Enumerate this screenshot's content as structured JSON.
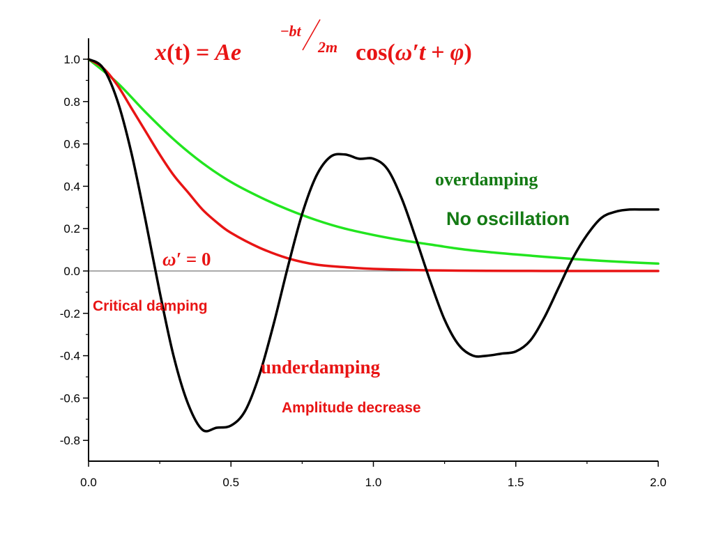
{
  "chart_data": {
    "type": "line",
    "xlim": [
      0,
      2
    ],
    "ylim": [
      -0.9,
      1.1
    ],
    "xticks": [
      "0.0",
      "0.5",
      "1.0",
      "1.5",
      "2.0"
    ],
    "yticks": [
      "1.0",
      "0.8",
      "0.6",
      "0.4",
      "0.2",
      "0.0",
      "-0.2",
      "-0.4",
      "-0.6",
      "-0.8"
    ],
    "xtick_values": [
      0,
      0.5,
      1.0,
      1.5,
      2.0
    ],
    "ytick_values": [
      1.0,
      0.8,
      0.6,
      0.4,
      0.2,
      0.0,
      -0.2,
      -0.4,
      -0.6,
      -0.8
    ],
    "grid": false,
    "zero_line": true,
    "formula": {
      "lhs": "x",
      "var": "(t)",
      "eq": "=",
      "amp": "A",
      "base": "e",
      "exp_minus": "−",
      "exp_num": "bt",
      "exp_slash": "/",
      "exp_den": "2m",
      "cos": "cos(",
      "omega": "ω′",
      "t": "t",
      "plus": "+",
      "phi": "φ",
      "close": ")"
    },
    "series": [
      {
        "label": "underdamping",
        "color": "#000000",
        "x": [
          0.0,
          0.05,
          0.1,
          0.15,
          0.2,
          0.25,
          0.3,
          0.35,
          0.4,
          0.45,
          0.5,
          0.55,
          0.6,
          0.65,
          0.7,
          0.75,
          0.8,
          0.85,
          0.9,
          0.95,
          1.0,
          1.05,
          1.1,
          1.15,
          1.2,
          1.25,
          1.3,
          1.35,
          1.4,
          1.45,
          1.5,
          1.55,
          1.6,
          1.65,
          1.7,
          1.75,
          1.8,
          1.85,
          1.9,
          1.95,
          2.0
        ],
        "y": [
          1.0,
          0.96,
          0.81,
          0.56,
          0.24,
          -0.1,
          -0.41,
          -0.63,
          -0.75,
          -0.74,
          -0.73,
          -0.66,
          -0.49,
          -0.25,
          0.02,
          0.27,
          0.45,
          0.54,
          0.55,
          0.53,
          0.53,
          0.48,
          0.34,
          0.15,
          -0.05,
          -0.23,
          -0.35,
          -0.4,
          -0.4,
          -0.39,
          -0.38,
          -0.33,
          -0.22,
          -0.08,
          0.06,
          0.17,
          0.25,
          0.28,
          0.29,
          0.29,
          0.29
        ]
      },
      {
        "label": "Critical damping",
        "color": "#e81414",
        "x": [
          0.0,
          0.05,
          0.1,
          0.15,
          0.2,
          0.25,
          0.3,
          0.35,
          0.4,
          0.45,
          0.5,
          0.6,
          0.7,
          0.8,
          0.9,
          1.0,
          1.2,
          1.4,
          1.6,
          1.8,
          2.0
        ],
        "y": [
          1.0,
          0.96,
          0.88,
          0.77,
          0.66,
          0.55,
          0.45,
          0.37,
          0.29,
          0.23,
          0.18,
          0.11,
          0.06,
          0.03,
          0.018,
          0.01,
          0.003,
          0.001,
          0.0,
          0.0,
          0.0
        ]
      },
      {
        "label": "overdamping",
        "color": "#22e51f",
        "x": [
          0.0,
          0.1,
          0.2,
          0.3,
          0.4,
          0.5,
          0.6,
          0.7,
          0.8,
          0.9,
          1.0,
          1.1,
          1.2,
          1.3,
          1.4,
          1.5,
          1.6,
          1.7,
          1.8,
          1.9,
          2.0
        ],
        "y": [
          1.0,
          0.89,
          0.75,
          0.62,
          0.51,
          0.42,
          0.35,
          0.29,
          0.24,
          0.2,
          0.17,
          0.145,
          0.125,
          0.105,
          0.09,
          0.078,
          0.067,
          0.057,
          0.048,
          0.041,
          0.035
        ]
      }
    ],
    "annotations": {
      "overdamping": {
        "text": "overdamping",
        "color": "#147a14"
      },
      "no_oscillation": {
        "text": "No oscillation",
        "color": "#147a14"
      },
      "omega_zero": {
        "omega": "ω′",
        "rest": " = 0",
        "color": "#e81414"
      },
      "critical": {
        "text": "Critical damping",
        "color": "#e81414"
      },
      "underdamping": {
        "text": "underdamping",
        "color": "#e81414"
      },
      "amplitude": {
        "text": "Amplitude decrease",
        "color": "#e81414"
      }
    }
  }
}
